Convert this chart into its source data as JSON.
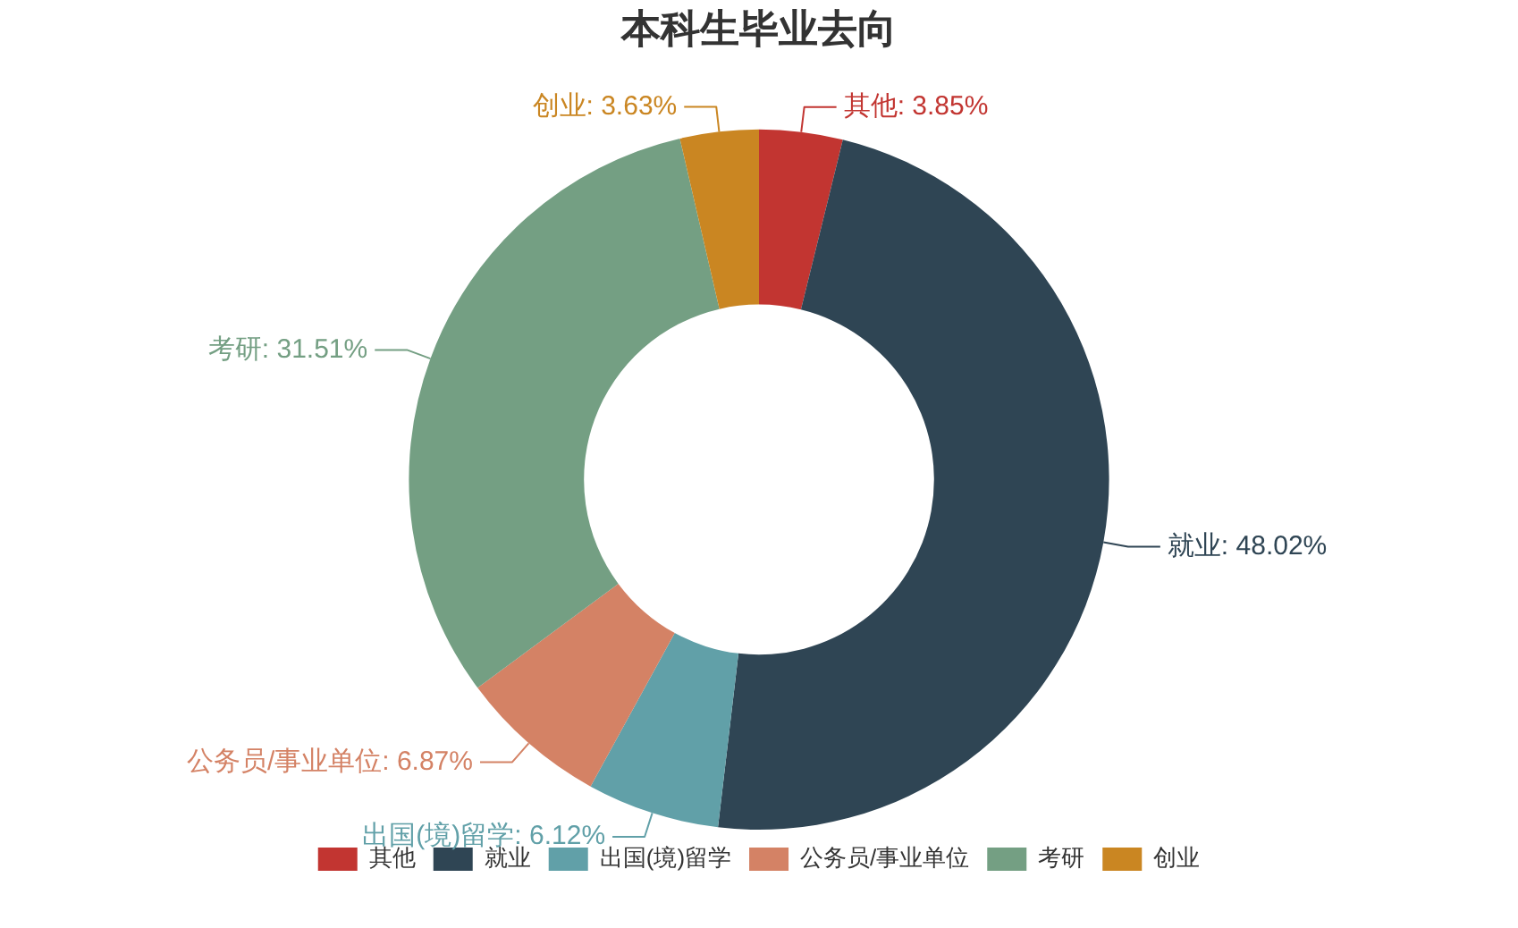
{
  "chart_data": {
    "type": "donut",
    "title": "本科生毕业去向",
    "categories": [
      "其他",
      "就业",
      "出国(境)留学",
      "公务员/事业单位",
      "考研",
      "创业"
    ],
    "values": [
      3.85,
      48.02,
      6.12,
      6.87,
      31.51,
      3.63
    ],
    "value_labels": [
      "其他: 3.85%",
      "就业: 48.02%",
      "出国(境)留学: 6.12%",
      "公务员/事业单位: 6.87%",
      "考研: 31.51%",
      "创业: 3.63%"
    ],
    "colors": [
      "#c23531",
      "#2f4554",
      "#61a0a8",
      "#d48265",
      "#749f83",
      "#ca8622"
    ],
    "legend": "bottom"
  }
}
